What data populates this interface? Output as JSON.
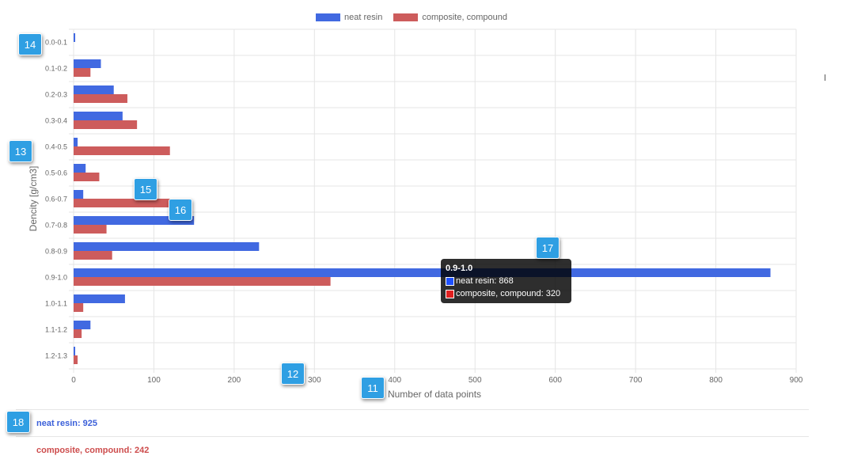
{
  "chart_data": {
    "type": "bar",
    "orientation": "horizontal",
    "categories": [
      "0.0-0.1",
      "0.1-0.2",
      "0.2-0.3",
      "0.3-0.4",
      "0.4-0.5",
      "0.5-0.6",
      "0.6-0.7",
      "0.7-0.8",
      "0.8-0.9",
      "0.9-1.0",
      "1.0-1.1",
      "1.1-1.2",
      "1.2-1.3"
    ],
    "series": [
      {
        "name": "neat resin",
        "color": "#4169e1",
        "values": [
          2,
          34,
          50,
          61,
          5,
          15,
          12,
          150,
          231,
          868,
          64,
          21,
          2
        ]
      },
      {
        "name": "composite, compound",
        "color": "#cd5c5c",
        "values": [
          0,
          21,
          67,
          79,
          120,
          32,
          120,
          41,
          48,
          320,
          12,
          10,
          5
        ]
      }
    ],
    "xlabel": "Number of data points",
    "ylabel": "Dencity [g/cm3]",
    "xlim": [
      0,
      900
    ],
    "xticks": [
      0,
      100,
      200,
      300,
      400,
      500,
      600,
      700,
      800,
      900
    ],
    "grid": true,
    "legend_position": "top-center"
  },
  "tooltip": {
    "title": "0.9-1.0",
    "rows": [
      {
        "text": "neat resin: 868",
        "color": "#1e50ff"
      },
      {
        "text": "composite, compound: 320",
        "color": "#e02020"
      }
    ]
  },
  "summary": {
    "neat_resin": "neat resin: 925",
    "composite": "composite, compound: 242",
    "neat_color": "#3a5fd9",
    "composite_color": "#cd4c4c"
  },
  "badges": [
    "14",
    "13",
    "15",
    "16",
    "17",
    "12",
    "11",
    "18"
  ]
}
